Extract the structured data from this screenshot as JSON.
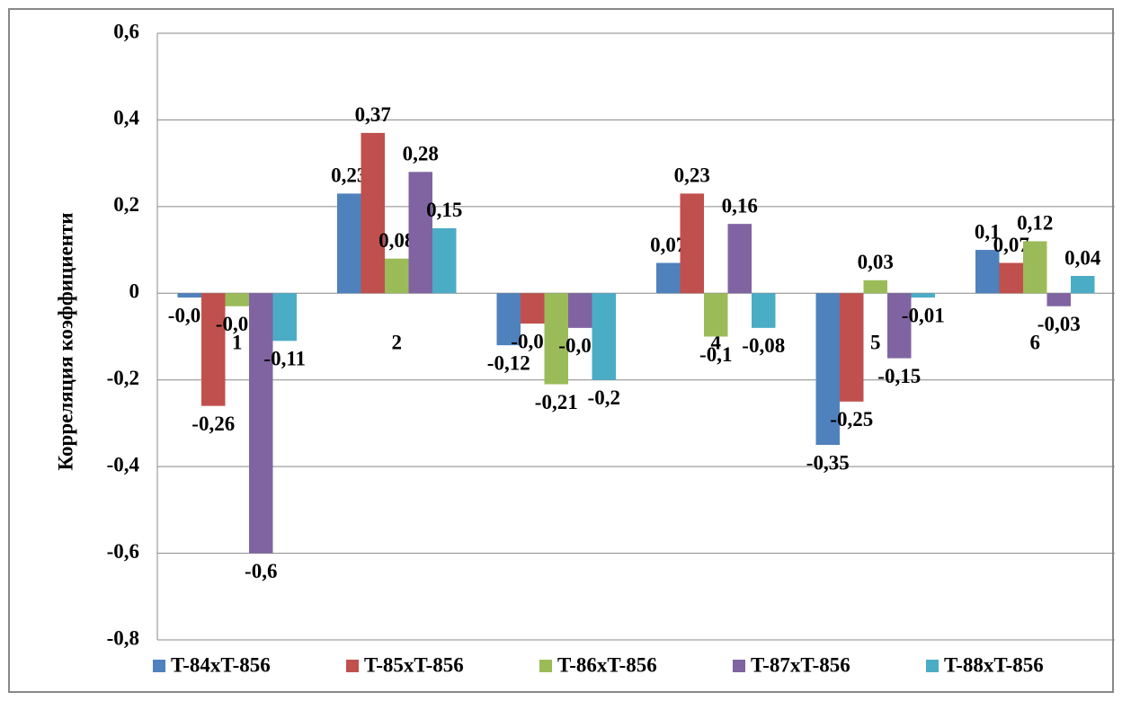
{
  "chart_data": {
    "type": "bar",
    "y_label": "Корреляция коэффициенти",
    "categories": [
      "1",
      "2",
      "3",
      "4",
      "5",
      "6"
    ],
    "series": [
      {
        "name": "T-84xT-856",
        "color": "#4f81bd",
        "values": [
          -0.01,
          0.23,
          -0.12,
          0.07,
          -0.35,
          0.1
        ],
        "value_labels": [
          "-0,01",
          "0,23",
          "-0,12",
          "0,07",
          "-0,35",
          "0,1"
        ]
      },
      {
        "name": "T-85xT-856",
        "color": "#c0504d",
        "values": [
          -0.26,
          0.37,
          -0.07,
          0.23,
          -0.25,
          0.07
        ],
        "value_labels": [
          "-0,26",
          "0,37",
          "-0,07",
          "0,23",
          "-0,25",
          "0,07"
        ]
      },
      {
        "name": "T-86xT-856",
        "color": "#9bbb59",
        "values": [
          -0.03,
          0.08,
          -0.21,
          -0.1,
          0.03,
          0.12
        ],
        "value_labels": [
          "-0,03",
          "0,08",
          "-0,21",
          "-0,1",
          "0,03",
          "0,12"
        ]
      },
      {
        "name": "T-87xT-856",
        "color": "#8064a2",
        "values": [
          -0.6,
          0.28,
          -0.08,
          0.16,
          -0.15,
          -0.03
        ],
        "value_labels": [
          "-0,6",
          "0,28",
          "-0,08",
          "0,16",
          "-0,15",
          "-0,03"
        ]
      },
      {
        "name": "T-88xT-856",
        "color": "#4bacc6",
        "values": [
          -0.11,
          0.15,
          -0.2,
          -0.08,
          -0.01,
          0.04
        ],
        "value_labels": [
          "-0,11",
          "0,15",
          "-0,2",
          "-0,08",
          "-0,01",
          "0,04"
        ]
      }
    ],
    "ylim": [
      -0.8,
      0.6
    ],
    "yticks": [
      {
        "value": -0.8,
        "label": "-0,8"
      },
      {
        "value": -0.6,
        "label": "-0,6"
      },
      {
        "value": -0.4,
        "label": "-0,4"
      },
      {
        "value": -0.2,
        "label": "-0,2"
      },
      0,
      {
        "value": 0.2,
        "label": "0,2"
      },
      {
        "value": 0.4,
        "label": "0,4"
      },
      {
        "value": 0.6,
        "label": "0,6"
      }
    ],
    "grid": true,
    "legend": "bottom"
  }
}
